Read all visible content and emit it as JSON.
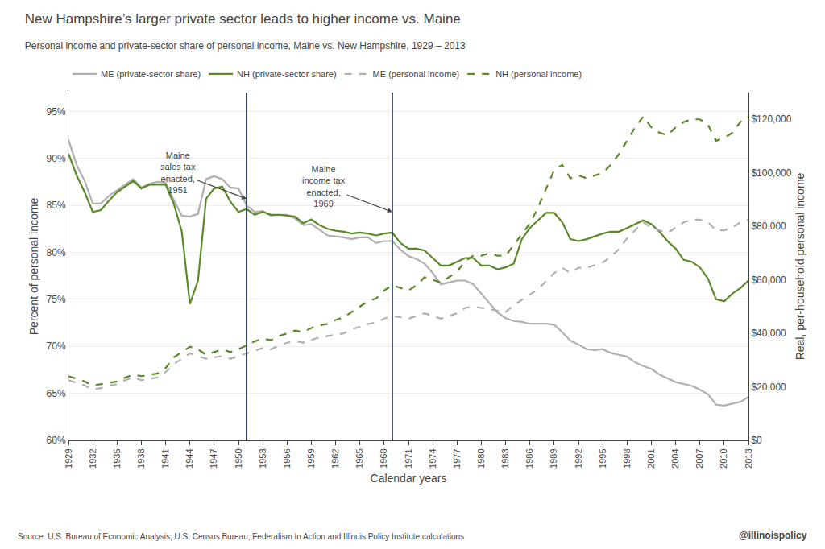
{
  "chart_data": {
    "type": "line",
    "title": "New Hampshire’s larger private sector leads to higher income vs. Maine",
    "subtitle": "Personal income and private-sector share of personal income, Maine vs. New Hampshire, 1929 – 2013",
    "x_label": "Calendar years",
    "y_label": "Percent of personal income",
    "y2_label": "Real, per-household personal income",
    "source": "Source: U.S. Bureau of Economic Analysis, U.S. Census Bureau, Federalism In Action and Illinois Policy Institute calculations",
    "watermark": "@illinoispolicy",
    "grid": true,
    "legend": "top",
    "x": [
      1929,
      1930,
      1931,
      1932,
      1933,
      1934,
      1935,
      1936,
      1937,
      1938,
      1939,
      1940,
      1941,
      1942,
      1943,
      1944,
      1945,
      1946,
      1947,
      1948,
      1949,
      1950,
      1951,
      1952,
      1953,
      1954,
      1955,
      1956,
      1957,
      1958,
      1959,
      1960,
      1961,
      1962,
      1963,
      1964,
      1965,
      1966,
      1967,
      1968,
      1969,
      1970,
      1971,
      1972,
      1973,
      1974,
      1975,
      1976,
      1977,
      1978,
      1979,
      1980,
      1981,
      1982,
      1983,
      1984,
      1985,
      1986,
      1987,
      1988,
      1989,
      1990,
      1991,
      1992,
      1993,
      1994,
      1995,
      1996,
      1997,
      1998,
      1999,
      2000,
      2001,
      2002,
      2003,
      2004,
      2005,
      2006,
      2007,
      2008,
      2009,
      2010,
      2011,
      2012,
      2013
    ],
    "xlim": [
      1929,
      2013
    ],
    "xticks": [
      1929,
      1932,
      1935,
      1938,
      1941,
      1944,
      1947,
      1950,
      1953,
      1956,
      1959,
      1962,
      1965,
      1968,
      1971,
      1974,
      1977,
      1980,
      1983,
      1986,
      1989,
      1992,
      1995,
      1998,
      2001,
      2004,
      2007,
      2010,
      2013
    ],
    "ylim": [
      0.6,
      0.97
    ],
    "yticks": [
      {
        "value": 0.6,
        "label": "60%"
      },
      {
        "value": 0.65,
        "label": "65%"
      },
      {
        "value": 0.7,
        "label": "70%"
      },
      {
        "value": 0.75,
        "label": "75%"
      },
      {
        "value": 0.8,
        "label": "80%"
      },
      {
        "value": 0.85,
        "label": "85%"
      },
      {
        "value": 0.9,
        "label": "90%"
      },
      {
        "value": 0.95,
        "label": "95%"
      }
    ],
    "y2lim": [
      0,
      130000
    ],
    "y2ticks": [
      {
        "value": 0,
        "label": "$0"
      },
      {
        "value": 20000,
        "label": "$20,000"
      },
      {
        "value": 40000,
        "label": "$40,000"
      },
      {
        "value": 60000,
        "label": "$60,000"
      },
      {
        "value": 80000,
        "label": "$80,000"
      },
      {
        "value": 100000,
        "label": "$100,000"
      },
      {
        "value": 120000,
        "label": "$120,000"
      }
    ],
    "series": [
      {
        "name": "ME (private-sector share)",
        "color": "#b0b0b0",
        "line_style": "solid",
        "axis": "y",
        "values": [
          0.92,
          0.893,
          0.876,
          0.852,
          0.852,
          0.86,
          0.866,
          0.872,
          0.878,
          0.869,
          0.873,
          0.875,
          0.874,
          0.856,
          0.839,
          0.838,
          0.841,
          0.878,
          0.881,
          0.878,
          0.869,
          0.868,
          0.85,
          0.843,
          0.844,
          0.839,
          0.84,
          0.84,
          0.836,
          0.829,
          0.83,
          0.824,
          0.818,
          0.817,
          0.816,
          0.814,
          0.816,
          0.816,
          0.81,
          0.812,
          0.812,
          0.803,
          0.796,
          0.793,
          0.788,
          0.778,
          0.766,
          0.768,
          0.77,
          0.77,
          0.766,
          0.756,
          0.746,
          0.736,
          0.73,
          0.727,
          0.726,
          0.724,
          0.724,
          0.724,
          0.723,
          0.715,
          0.706,
          0.702,
          0.697,
          0.696,
          0.697,
          0.693,
          0.691,
          0.689,
          0.683,
          0.679,
          0.676,
          0.67,
          0.666,
          0.662,
          0.66,
          0.658,
          0.654,
          0.649,
          0.638,
          0.637,
          0.639,
          0.641,
          0.646
        ]
      },
      {
        "name": "NH (private-sector share)",
        "color": "#5a8a28",
        "line_style": "solid",
        "axis": "y",
        "values": [
          0.905,
          0.882,
          0.864,
          0.843,
          0.845,
          0.855,
          0.864,
          0.87,
          0.876,
          0.868,
          0.872,
          0.872,
          0.872,
          0.852,
          0.822,
          0.745,
          0.77,
          0.857,
          0.868,
          0.87,
          0.854,
          0.843,
          0.846,
          0.84,
          0.843,
          0.84,
          0.84,
          0.839,
          0.838,
          0.831,
          0.835,
          0.829,
          0.825,
          0.823,
          0.822,
          0.82,
          0.821,
          0.82,
          0.818,
          0.82,
          0.821,
          0.81,
          0.804,
          0.804,
          0.802,
          0.794,
          0.786,
          0.786,
          0.79,
          0.794,
          0.794,
          0.786,
          0.786,
          0.782,
          0.784,
          0.788,
          0.814,
          0.826,
          0.834,
          0.842,
          0.842,
          0.832,
          0.814,
          0.812,
          0.814,
          0.817,
          0.82,
          0.822,
          0.822,
          0.826,
          0.83,
          0.834,
          0.83,
          0.822,
          0.812,
          0.804,
          0.792,
          0.79,
          0.784,
          0.772,
          0.75,
          0.748,
          0.756,
          0.762,
          0.77
        ]
      },
      {
        "name": "ME (personal income)",
        "color": "#b0b0b0",
        "line_style": "dashed",
        "axis": "y2",
        "values": [
          22500,
          21500,
          20500,
          19000,
          19500,
          20500,
          21000,
          22500,
          23500,
          22500,
          23000,
          23500,
          25500,
          28500,
          30500,
          32500,
          31500,
          30500,
          31000,
          31500,
          30500,
          31500,
          32500,
          33500,
          34500,
          34000,
          35500,
          36500,
          37000,
          36500,
          37500,
          38500,
          39000,
          39500,
          40000,
          41500,
          42500,
          43500,
          44000,
          45500,
          46500,
          46000,
          45500,
          46500,
          47500,
          46500,
          45500,
          46500,
          47500,
          49500,
          50000,
          49500,
          49000,
          48500,
          48000,
          50500,
          52500,
          54500,
          56500,
          59500,
          62500,
          64500,
          62500,
          64500,
          64500,
          65500,
          66500,
          68500,
          71500,
          75500,
          78500,
          81500,
          79500,
          78500,
          77500,
          79500,
          81500,
          82500,
          82500,
          81500,
          78500,
          78500,
          79500,
          81500,
          82500
        ]
      },
      {
        "name": "NH (personal income)",
        "color": "#5a8a28",
        "line_style": "dashed",
        "axis": "y2",
        "values": [
          24000,
          23000,
          22000,
          20500,
          21000,
          21500,
          22000,
          23500,
          24500,
          24000,
          24500,
          25000,
          27000,
          31000,
          33000,
          35000,
          34000,
          32000,
          33000,
          34000,
          33000,
          34000,
          35500,
          37000,
          38000,
          37500,
          39000,
          40000,
          41000,
          40500,
          42000,
          43000,
          43500,
          45000,
          46000,
          48000,
          50000,
          52000,
          53000,
          56000,
          58000,
          57000,
          56000,
          58000,
          61000,
          60000,
          59000,
          61000,
          63000,
          67000,
          69000,
          69000,
          70000,
          69000,
          69000,
          73000,
          77000,
          81000,
          87000,
          94000,
          101000,
          103000,
          98000,
          99000,
          98000,
          99000,
          100000,
          103000,
          107000,
          112000,
          117000,
          121000,
          117000,
          115000,
          114000,
          117000,
          119000,
          120000,
          120000,
          118000,
          112000,
          113000,
          115000,
          119000,
          121000
        ]
      }
    ],
    "vlines": [
      {
        "x": 1951,
        "color": "#1a2e52"
      },
      {
        "x": 1969,
        "color": "#1a2e52"
      }
    ],
    "annotations": [
      {
        "text": "Maine\nsales tax\nenacted,\n1951",
        "x": 1951,
        "y": 0.857
      },
      {
        "text": "Maine\nincome tax\nenacted,\n1969",
        "x": 1969,
        "y": 0.843
      }
    ]
  }
}
